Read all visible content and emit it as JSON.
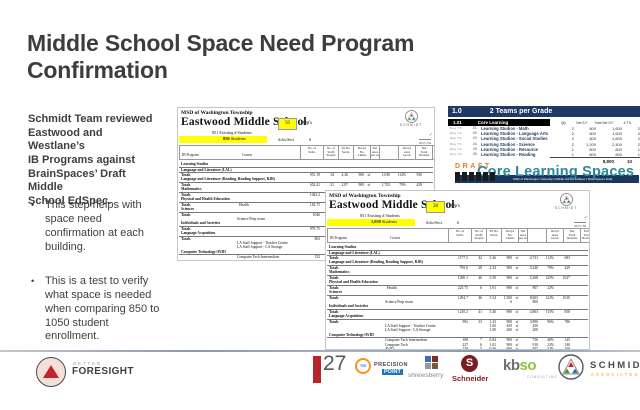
{
  "title": "Middle School Space Need Program\nConfirmation",
  "sidebar": {
    "intro": "Schmidt Team reviewed\nEastwood and Westlane’s\nIB Programs against\nBrainSpaces’ Draft Middle\nSchool EdSpec.",
    "bullets": [
      "This step helps with\nspace need\nconfirmation at each\nbuilding.",
      "This is a test to verify\nwhat space is needed\nwhen comparing 850 to\n1050 student\nenrollment."
    ]
  },
  "doc_columns": {
    "ib": "IB Program",
    "course": "Course",
    "cells": [
      "No. of\nStdts.",
      "No. of\nStaff/\nPeople",
      "Ttl No.\nSectn.",
      "Req'd\nNo.\nChrms",
      "Net\nArea\nper ea",
      "",
      "Req'd\nArea\nGross",
      "Net\nTotal\nStations",
      "Ext'l\nTotal\nStations"
    ]
  },
  "doc1": {
    "district": "MSD of Washington Township",
    "school": "Eastwood Middle School",
    "existing": "851   Existing # Students",
    "enrollment": "850",
    "enrollment_label": " Students",
    "op_value": "50",
    "op_label": "Op's",
    "sect_label": "Schs/Sect",
    "sect_value": "6",
    "brand": "SCHMIDT",
    "ref": "2017.134",
    "check": "✓",
    "rows": [
      {
        "t": "sec",
        "label": "Learning Studios"
      },
      {
        "t": "sec",
        "label": "Language and Literature  (LAL)"
      },
      {
        "t": "tot",
        "label": "Totals",
        "v": [
          "951.19",
          "34",
          "4.26",
          "900",
          "sf",
          "1,030",
          "112%",
          "930",
          ""
        ]
      },
      {
        "t": "sec",
        "label": "Language and Literature  (Reading, Reading Support, RJR)"
      },
      {
        "t": "tot",
        "label": "Totals",
        "v": [
          "652.41",
          "21",
          "2.87",
          "900",
          "sf",
          "1,702",
          "79%",
          "429",
          ""
        ]
      },
      {
        "t": "sec",
        "label": "Mathematics"
      },
      {
        "t": "tot",
        "label": "Totals",
        "v": [
          "1043.2",
          "37",
          "4.48",
          "900",
          "sf",
          "4,216",
          "127%",
          "1027",
          ""
        ]
      },
      {
        "t": "sec",
        "label": "Physical and Health Education"
      },
      {
        "t": "tot",
        "label": "Totals",
        "label2": "Health",
        "v": [
          "182.75",
          "5",
          "0.52",
          "",
          "",
          "",
          "",
          "",
          ""
        ]
      },
      {
        "t": "sec",
        "label": "Sciences"
      },
      {
        "t": "tot",
        "label": "Totals",
        "v": [
          "1046",
          "27",
          "4.09",
          "",
          "",
          "",
          "",
          "",
          ""
        ]
      },
      {
        "t": "sub",
        "label": "Science Prep room",
        "v": [
          "",
          "",
          "",
          "",
          "",
          "",
          "",
          "",
          ""
        ]
      },
      {
        "t": "sec",
        "label": "Individuals and Societies"
      },
      {
        "t": "tot",
        "label": "Totals",
        "v": [
          "979.75",
          "35",
          "4.37",
          "",
          "",
          "",
          "",
          "",
          ""
        ]
      },
      {
        "t": "sec",
        "label": "Language Acquisition"
      },
      {
        "t": "tot",
        "label": "Totals",
        "v": [
          "863",
          "23",
          "1.56",
          "",
          "",
          "",
          "",
          "",
          ""
        ]
      },
      {
        "t": "sub",
        "label": "LA Staff Support - Teacher Centre",
        "v": [
          "",
          "",
          "1.00",
          "",
          "",
          "",
          "",
          "",
          ""
        ]
      },
      {
        "t": "sub",
        "label": "LA Staff Support - LA Storage",
        "v": [
          "",
          "",
          "1.00",
          "",
          "",
          "",
          "",
          "",
          ""
        ]
      },
      {
        "t": "sec",
        "label": "Computer Technology/AVID"
      },
      {
        "t": "sub",
        "label": "Computer Tech Intermediate",
        "v": [
          "152",
          "3",
          "0.00",
          "",
          "",
          "",
          "",
          "",
          ""
        ]
      },
      {
        "t": "sub",
        "label": "Computer Tech",
        "v": [
          "144",
          "3",
          "0.02",
          "",
          "",
          "",
          "",
          "",
          ""
        ]
      },
      {
        "t": "sub",
        "label": "AVID",
        "v": [
          "160",
          "4",
          "0.16",
          "",
          "",
          "",
          "",
          "",
          ""
        ]
      },
      {
        "t": "tot",
        "label": "Totals",
        "v": [
          "",
          "",
          "",
          "",
          "",
          "",
          "",
          "",
          ""
        ]
      }
    ]
  },
  "doc2": {
    "district": "MSD of Washington Township",
    "school": "Eastwood Middle School",
    "existing": "851   Existing # Students",
    "enrollment": "1,050",
    "enrollment_label": " Students",
    "op_value": "28",
    "op_label": "Op's",
    "sect_label": "Schs/Sect",
    "sect_value": "6",
    "brand": "SCHMIDT",
    "ref": "2017.134",
    "check": "✓",
    "rows": [
      {
        "t": "sec",
        "label": "Learning Studios"
      },
      {
        "t": "sec",
        "label": "Language and Literature  (LAL)"
      },
      {
        "t": "tot",
        "label": "Totals",
        "v": [
          "1177.5",
          "42",
          "5.26",
          "900",
          "sf",
          "4,731",
          "112%",
          "683",
          ""
        ]
      },
      {
        "t": "sec",
        "label": "Language and Literature  (Reading, Reading Support, RJR)"
      },
      {
        "t": "tot",
        "label": "Totals",
        "v": [
          "795.0",
          "28",
          "2.34",
          "900",
          "sf",
          "3,240",
          "79%",
          "429",
          ""
        ]
      },
      {
        "t": "sec",
        "label": "Mathematics"
      },
      {
        "t": "tot",
        "label": "Totals",
        "v": [
          "1290.1",
          "46",
          "5.59",
          "900",
          "sf",
          "5,268",
          "125%",
          "1027",
          ""
        ]
      },
      {
        "t": "sec",
        "label": "Physical and Health Education"
      },
      {
        "t": "tot",
        "label": "Totals",
        "label2": "Health",
        "v": [
          "225.75",
          "6",
          "1.01",
          "900",
          "sf",
          "907",
          "22%",
          "",
          ""
        ]
      },
      {
        "t": "sec",
        "label": "Sciences"
      },
      {
        "t": "tot",
        "label": "Totals",
        "v": [
          "1294.7",
          "46",
          "5.54",
          "1,500",
          "sf",
          "8,603",
          "122%",
          "1010",
          ""
        ]
      },
      {
        "t": "sub",
        "label": "Science Prep room",
        "v": [
          "",
          "",
          "",
          "6",
          "",
          "800",
          "",
          "",
          ""
        ]
      },
      {
        "t": "sec",
        "label": "Individuals and Societies"
      },
      {
        "t": "tot",
        "label": "Totals",
        "v": [
          "1210.2",
          "41",
          "5.40",
          "900",
          "sf",
          "4,863",
          "115%",
          "858",
          ""
        ]
      },
      {
        "t": "sec",
        "label": "Language Acquisition"
      },
      {
        "t": "tot",
        "label": "Totals",
        "v": [
          "992",
          "33",
          "1.43",
          "900",
          "sf",
          "3,896",
          "96%",
          "786",
          ""
        ]
      },
      {
        "t": "sub",
        "label": "LA Staff Support - Teacher Center",
        "v": [
          "",
          "",
          "1.00",
          "450",
          "sf",
          "450",
          "",
          "",
          ""
        ]
      },
      {
        "t": "sub",
        "label": "LA Staff Support - LA Storage",
        "v": [
          "",
          "",
          "1.00",
          "200",
          "sf",
          "200",
          "",
          "",
          ""
        ]
      },
      {
        "t": "sec",
        "label": "Computer Technology/AVID"
      },
      {
        "t": "sub",
        "label": "Computer Tech Intermediate",
        "v": [
          "188",
          "7",
          "0.84",
          "900",
          "sf",
          "756",
          "40%",
          "145",
          ""
        ]
      },
      {
        "t": "sub",
        "label": "Computer Tech",
        "v": [
          "227",
          "6",
          "1.01",
          "900",
          "sf",
          "910",
          "22%",
          "140",
          ""
        ]
      },
      {
        "t": "sub",
        "label": "AVID",
        "v": [
          "138",
          "5",
          "0.56",
          "900",
          "sf",
          "507",
          "32%",
          "100",
          ""
        ]
      },
      {
        "t": "tot",
        "label": "Totals",
        "v": [
          "",
          "",
          "",
          "",
          "",
          "",
          "",
          "",
          ""
        ]
      }
    ]
  },
  "edspec": {
    "code": "1.0",
    "title": "2 Teams per Grade",
    "sub_code": "1.01",
    "sub_label": "Core Learning",
    "columns": [
      "Qty",
      "Net S.F.",
      "Total Net S.F.",
      "# T.S."
    ],
    "row_prefix": "Req. T.S.",
    "rows": [
      {
        "num": ".01",
        "label": "Learning Studios - Math",
        "qty": "2",
        "nsf": "800",
        "tnsf": "1,600",
        "ts": "2"
      },
      {
        "num": ".02",
        "label": "Learning Studios - Language Arts",
        "qty": "2",
        "nsf": "800",
        "tnsf": "1,600",
        "ts": "2"
      },
      {
        "num": ".03",
        "label": "Learning Studios - Social Studies",
        "qty": "2",
        "nsf": "800",
        "tnsf": "1,600",
        "ts": "2"
      },
      {
        "num": ".04",
        "label": "Learning Studios - Science",
        "qty": "2",
        "nsf": "1,200",
        "tnsf": "2,400",
        "ts": "2"
      },
      {
        "num": ".05",
        "label": "Learning Studios - Resource",
        "qty": "1",
        "nsf": "800",
        "tnsf": "800",
        "ts": "1"
      },
      {
        "num": ".06",
        "label": "Learning Studios - Reading",
        "qty": "1",
        "nsf": "800",
        "tnsf": "800",
        "ts": "1"
      }
    ],
    "total_tnsf": "8,800",
    "total_ts": "10",
    "draft": "DRAFT",
    "caption": "Core Learning Spaces",
    "banner": "MSD of Washington Township  |  Middle School EdSpec  |  BrainSpaces Draft"
  },
  "footer": {
    "foresight_top": "BETTER",
    "foresight": "FORESIGHT",
    "design27": "27",
    "precision_line1": "PRECISION",
    "precision_line2": "POINT",
    "precision_icon_text": "TIS",
    "shrewsberry": "shrewsberry",
    "schneider": "Schneider",
    "schneider_icon_letter": "S",
    "kbso_kb": "kb",
    "kbso_so": "so",
    "kbso_sub": "CONSULTING",
    "schmidt": "SCHMIDT",
    "schmidt_sub": "ASSOCIATES"
  },
  "colors": {
    "accent_navy": "#1F3864",
    "accent_teal": "#2E8699",
    "accent_orange": "#DD7E2B",
    "highlight_yellow": "#FFFF00",
    "schneider_maroon": "#7B1E24",
    "kbso_green": "#8CC63E",
    "foresight_red": "#C0272D"
  }
}
